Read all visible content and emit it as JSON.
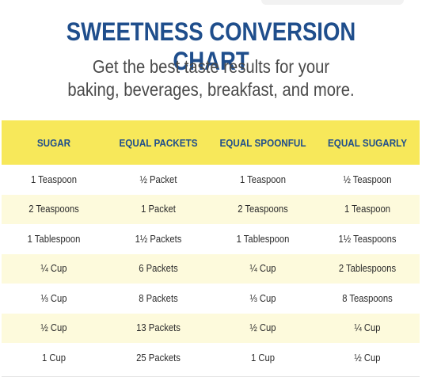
{
  "title": "SWEETNESS CONVERSION CHART",
  "subtitle_line1": "Get the best taste results for your",
  "subtitle_line2": "baking, beverages, breakfast, and more.",
  "colors": {
    "title_blue": "#1f4e8c",
    "header_yellow": "#f7e85a",
    "row_alt_yellow": "#fdfadc"
  },
  "table": {
    "headers": [
      "SUGAR",
      "EQUAL PACKETS",
      "EQUAL SPOONFUL",
      "EQUAL SUGARLY"
    ],
    "rows": [
      [
        "1 Teaspoon",
        "½ Packet",
        "1 Teaspoon",
        "½ Teaspoon"
      ],
      [
        "2 Teaspoons",
        "1 Packet",
        "2 Teaspoons",
        "1 Teaspoon"
      ],
      [
        "1 Tablespoon",
        "1½ Packets",
        "1 Tablespoon",
        "1½ Teaspoons"
      ],
      [
        "¼ Cup",
        "6 Packets",
        "¼ Cup",
        "2 Tablespoons"
      ],
      [
        "⅓ Cup",
        "8 Packets",
        "⅓ Cup",
        "8 Teaspoons"
      ],
      [
        "½ Cup",
        "13 Packets",
        "½ Cup",
        "¼ Cup"
      ],
      [
        "1 Cup",
        "25 Packets",
        "1 Cup",
        "½ Cup"
      ]
    ]
  }
}
